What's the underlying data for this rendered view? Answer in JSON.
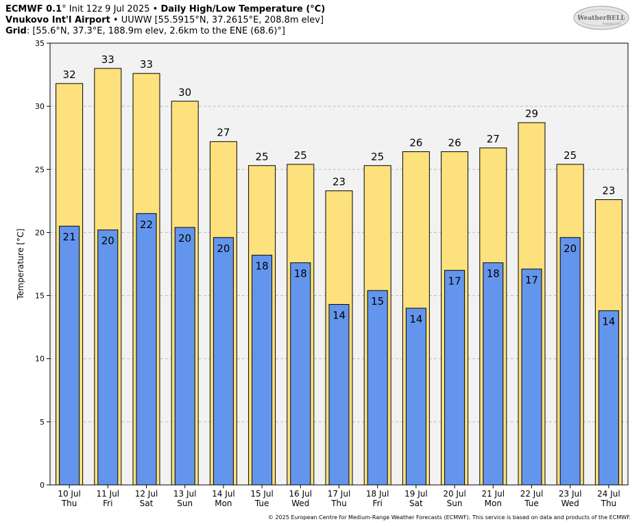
{
  "header": {
    "line1": {
      "model": "ECMWF 0.1",
      "deg": "°",
      "init": " Init 12z 9 Jul 2025",
      "sep": " • ",
      "product": "Daily High/Low Temperature (°C)"
    },
    "line2": {
      "station": "Vnukovo Int'l Airport",
      "sep": " • ",
      "details": "UUWW [55.5915°N, 37.2615°E, 208.8m elev]"
    },
    "line3": {
      "label": "Grid",
      "details": ": [55.6°N, 37.3°E, 188.9m elev, 2.6km to the ENE (68.6)°]"
    }
  },
  "logo": {
    "text": "WeatherBELL",
    "subtext": "Analytics LLC"
  },
  "footer": "© 2025 European Centre for Medium-Range Weather Forecasts (ECMWF). This service is based on data and products of the ECMWF.",
  "colors": {
    "high": "#fde17d",
    "low": "#6495ed",
    "plot_bg": "#f2f2f2",
    "grid": "#bbbbbb"
  },
  "chart_data": {
    "type": "bar",
    "ylabel": "Temperature [°C]",
    "ylim": [
      0,
      35
    ],
    "yticks": [
      0,
      5,
      10,
      15,
      20,
      25,
      30,
      35
    ],
    "grid": "horizontal dashed",
    "categories": [
      [
        "10 Jul",
        "Thu"
      ],
      [
        "11 Jul",
        "Fri"
      ],
      [
        "12 Jul",
        "Sat"
      ],
      [
        "13 Jul",
        "Sun"
      ],
      [
        "14 Jul",
        "Mon"
      ],
      [
        "15 Jul",
        "Tue"
      ],
      [
        "16 Jul",
        "Wed"
      ],
      [
        "17 Jul",
        "Thu"
      ],
      [
        "18 Jul",
        "Fri"
      ],
      [
        "19 Jul",
        "Sat"
      ],
      [
        "20 Jul",
        "Sun"
      ],
      [
        "21 Jul",
        "Mon"
      ],
      [
        "22 Jul",
        "Tue"
      ],
      [
        "23 Jul",
        "Wed"
      ],
      [
        "24 Jul",
        "Thu"
      ]
    ],
    "series": [
      {
        "values": [
          31.8,
          33.0,
          32.6,
          30.4,
          27.2,
          25.3,
          25.4,
          23.3,
          25.3,
          26.4,
          26.4,
          26.7,
          28.7,
          25.4,
          22.6
        ],
        "labels": [
          "32",
          "33",
          "33",
          "30",
          "27",
          "25",
          "25",
          "23",
          "25",
          "26",
          "26",
          "27",
          "29",
          "25",
          "23"
        ]
      },
      {
        "values": [
          20.5,
          20.2,
          21.5,
          20.4,
          19.6,
          18.2,
          17.6,
          14.3,
          15.4,
          14.0,
          17.0,
          17.6,
          17.1,
          19.6,
          13.8
        ],
        "labels": [
          "21",
          "20",
          "22",
          "20",
          "20",
          "18",
          "18",
          "14",
          "15",
          "14",
          "17",
          "18",
          "17",
          "20",
          "14"
        ]
      }
    ]
  }
}
